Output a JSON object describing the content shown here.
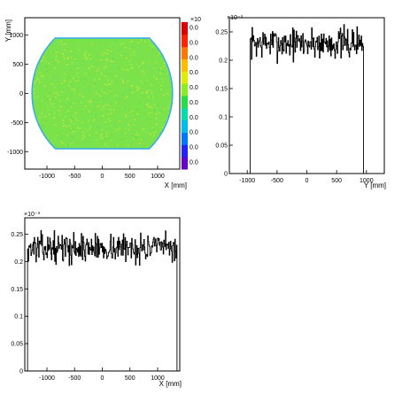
{
  "chart_data": [
    {
      "type": "heatmap",
      "xlabel": "X [mm]",
      "ylabel": "Y [mm]",
      "xlim": [
        -1400,
        1400
      ],
      "ylim": [
        -1300,
        1300
      ],
      "xticks": [
        -1000,
        -500,
        0,
        500,
        1000
      ],
      "xtick_labels": [
        "-1000",
        "-500",
        "0",
        "500",
        "1000"
      ],
      "yticks": [
        -1000,
        -500,
        0,
        500,
        1000
      ],
      "ytick_labels": [
        "-1000",
        "-500",
        "0",
        "500",
        "1000"
      ],
      "region": {
        "x_half_width": 1350,
        "y_half_height": 950,
        "edge_circle_radius": 1400
      },
      "colorbar": {
        "exponent_label": "×10",
        "tick_labels": [
          "0.0",
          "0.0",
          "0.0",
          "0.0",
          "0.0",
          "0.0",
          "0.0",
          "0.0",
          "0.0",
          "0.0"
        ],
        "colors": [
          "#6600cc",
          "#2222ff",
          "#0077ff",
          "#00bbee",
          "#00ddaa",
          "#22dd44",
          "#88ee22",
          "#ddee00",
          "#ffbb00",
          "#ff7700",
          "#ff2200",
          "#dd0000"
        ],
        "dominant_color": "#7be24c"
      }
    },
    {
      "type": "line",
      "exponent_label": "×10⁻³",
      "xlabel": "Y [mm]",
      "ylabel": "",
      "xlim": [
        -1300,
        1300
      ],
      "ylim": [
        0,
        0.275
      ],
      "xticks": [
        -1000,
        -500,
        0,
        500,
        1000
      ],
      "xtick_labels": [
        "-1000",
        "-500",
        "0",
        "500",
        "1000"
      ],
      "yticks": [
        0,
        0.05,
        0.1,
        0.15,
        0.2,
        0.25
      ],
      "ytick_labels": [
        "0",
        "0.05",
        "0.1",
        "0.15",
        "0.2",
        "0.25"
      ],
      "support": [
        -950,
        950
      ],
      "level": 0.23,
      "noise": 0.02,
      "bins": 190,
      "seed": 7
    },
    {
      "type": "line",
      "exponent_label": "×10⁻³",
      "xlabel": "X [mm]",
      "ylabel": "",
      "xlim": [
        -1400,
        1400
      ],
      "ylim": [
        0,
        0.28
      ],
      "xticks": [
        -1000,
        -500,
        0,
        500,
        1000
      ],
      "xtick_labels": [
        "-1000",
        "-500",
        "0",
        "500",
        "1000"
      ],
      "yticks": [
        0,
        0.05,
        0.1,
        0.15,
        0.2,
        0.25
      ],
      "ytick_labels": [
        "0",
        "0.05",
        "0.1",
        "0.15",
        "0.2",
        "0.25"
      ],
      "support": [
        -1350,
        1350
      ],
      "level": 0.225,
      "noise": 0.018,
      "bins": 270,
      "seed": 13
    }
  ]
}
